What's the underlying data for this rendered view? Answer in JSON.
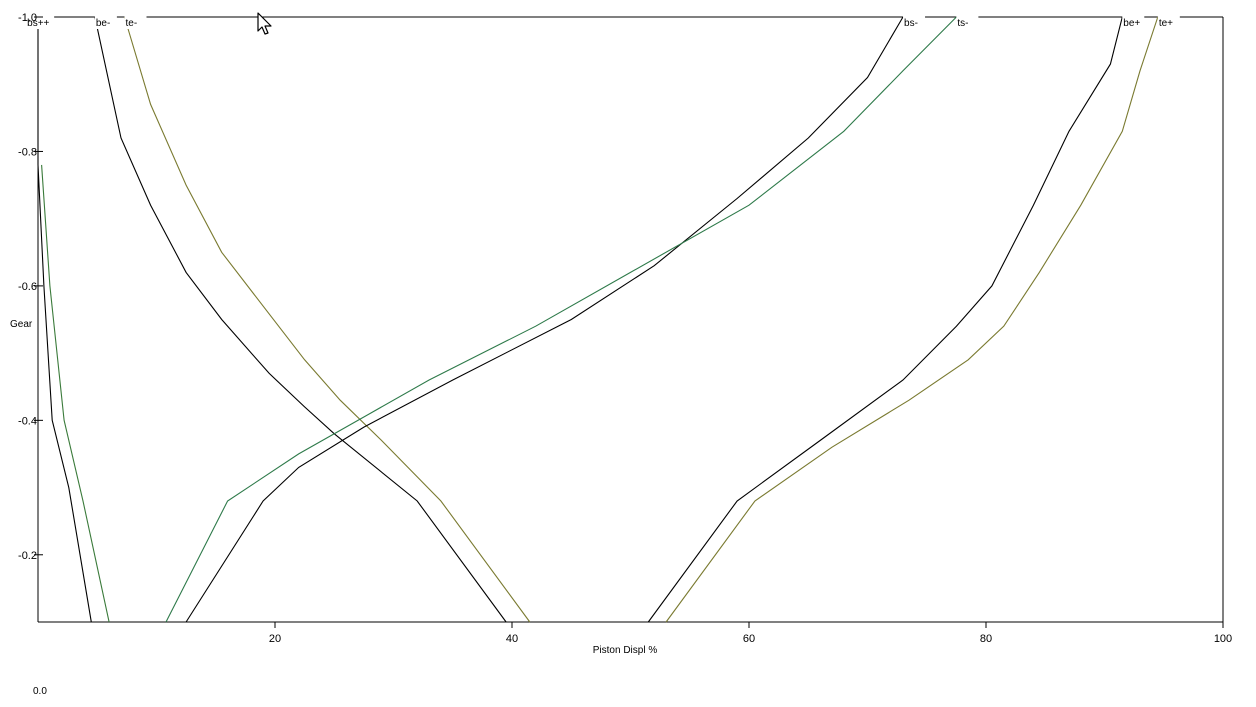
{
  "chart_data": {
    "type": "line",
    "title": "",
    "xlabel": "Piston Displ %",
    "ylabel": "Gear",
    "xlim": [
      0,
      100
    ],
    "ylim": [
      -1.0,
      -0.1
    ],
    "x_ticks": [
      {
        "v": 20,
        "label": "20"
      },
      {
        "v": 40,
        "label": "40"
      },
      {
        "v": 60,
        "label": "60"
      },
      {
        "v": 80,
        "label": "80"
      },
      {
        "v": 100,
        "label": "100"
      }
    ],
    "y_ticks": [
      {
        "v": -1.0,
        "label": "-1.0"
      },
      {
        "v": -0.8,
        "label": "-0.8"
      },
      {
        "v": -0.6,
        "label": "-0.6"
      },
      {
        "v": -0.4,
        "label": "-0.4"
      },
      {
        "v": -0.2,
        "label": "-0.2"
      }
    ],
    "grid": false,
    "corner_label": "0.0",
    "series": [
      {
        "name": "bs++",
        "color": "#000000",
        "points": [
          [
            0,
            -1.0
          ],
          [
            0,
            -0.78
          ],
          [
            0.5,
            -0.6
          ],
          [
            1.2,
            -0.4
          ],
          [
            2.6,
            -0.3
          ],
          [
            4.5,
            -0.1
          ]
        ]
      },
      {
        "name": "bs++",
        "color": "#3a7a3a",
        "points": [
          [
            0.3,
            -0.78
          ],
          [
            1.0,
            -0.6
          ],
          [
            2.2,
            -0.4
          ],
          [
            3.8,
            -0.28
          ],
          [
            6.0,
            -0.1
          ]
        ]
      },
      {
        "name": "be-",
        "color": "#000000",
        "points": [
          [
            4.8,
            -1.0
          ],
          [
            7.0,
            -0.82
          ],
          [
            9.5,
            -0.72
          ],
          [
            12.5,
            -0.62
          ],
          [
            15.5,
            -0.55
          ],
          [
            19.5,
            -0.47
          ],
          [
            22.5,
            -0.42
          ],
          [
            25.0,
            -0.38
          ],
          [
            32.0,
            -0.28
          ],
          [
            39.5,
            -0.1
          ]
        ]
      },
      {
        "name": "te-",
        "color": "#7a7a30",
        "points": [
          [
            7.3,
            -1.0
          ],
          [
            9.5,
            -0.87
          ],
          [
            12.5,
            -0.75
          ],
          [
            15.5,
            -0.65
          ],
          [
            19.0,
            -0.57
          ],
          [
            22.5,
            -0.49
          ],
          [
            25.5,
            -0.43
          ],
          [
            29.0,
            -0.37
          ],
          [
            34.0,
            -0.28
          ],
          [
            41.5,
            -0.1
          ]
        ]
      },
      {
        "name": "bs-",
        "color": "#000000",
        "points": [
          [
            12.5,
            -0.1
          ],
          [
            19.0,
            -0.28
          ],
          [
            22.0,
            -0.33
          ],
          [
            27.5,
            -0.39
          ],
          [
            35.0,
            -0.46
          ],
          [
            45.0,
            -0.55
          ],
          [
            52.0,
            -0.63
          ],
          [
            59.0,
            -0.73
          ],
          [
            65.0,
            -0.82
          ],
          [
            70.0,
            -0.91
          ],
          [
            73.0,
            -1.0
          ]
        ]
      },
      {
        "name": "ts-",
        "color": "#2e7a4a",
        "points": [
          [
            10.8,
            -0.1
          ],
          [
            16.0,
            -0.28
          ],
          [
            22.0,
            -0.35
          ],
          [
            28.0,
            -0.41
          ],
          [
            33.0,
            -0.46
          ],
          [
            42.0,
            -0.54
          ],
          [
            50.0,
            -0.62
          ],
          [
            60.0,
            -0.72
          ],
          [
            68.0,
            -0.83
          ],
          [
            73.0,
            -0.92
          ],
          [
            77.5,
            -1.0
          ]
        ]
      },
      {
        "name": "be+",
        "color": "#000000",
        "points": [
          [
            51.5,
            -0.1
          ],
          [
            59.0,
            -0.28
          ],
          [
            66.0,
            -0.37
          ],
          [
            73.0,
            -0.46
          ],
          [
            77.5,
            -0.54
          ],
          [
            80.5,
            -0.6
          ],
          [
            84.0,
            -0.72
          ],
          [
            87.0,
            -0.83
          ],
          [
            90.5,
            -0.93
          ],
          [
            91.5,
            -1.0
          ]
        ]
      },
      {
        "name": "te+",
        "color": "#7a7a30",
        "points": [
          [
            53.0,
            -0.1
          ],
          [
            60.5,
            -0.28
          ],
          [
            67.0,
            -0.36
          ],
          [
            73.5,
            -0.43
          ],
          [
            78.5,
            -0.49
          ],
          [
            81.5,
            -0.54
          ],
          [
            84.5,
            -0.62
          ],
          [
            88.0,
            -0.72
          ],
          [
            91.5,
            -0.83
          ],
          [
            93.0,
            -0.92
          ],
          [
            94.5,
            -1.0
          ]
        ]
      }
    ],
    "curve_labels": [
      {
        "text": "bs++",
        "x": 0.0,
        "label_x": -1.0,
        "label_y": -1.0
      },
      {
        "text": "be-",
        "x": 4.8,
        "label_y": -1.0
      },
      {
        "text": "te-",
        "x": 7.3,
        "label_y": -1.0
      },
      {
        "text": "bs-",
        "x": 73.0,
        "label_y": -1.0
      },
      {
        "text": "ts-",
        "x": 77.5,
        "label_y": -1.0
      },
      {
        "text": "be+",
        "x": 91.5,
        "label_y": -1.0
      },
      {
        "text": "te+",
        "x": 94.5,
        "label_y": -1.0
      }
    ]
  }
}
